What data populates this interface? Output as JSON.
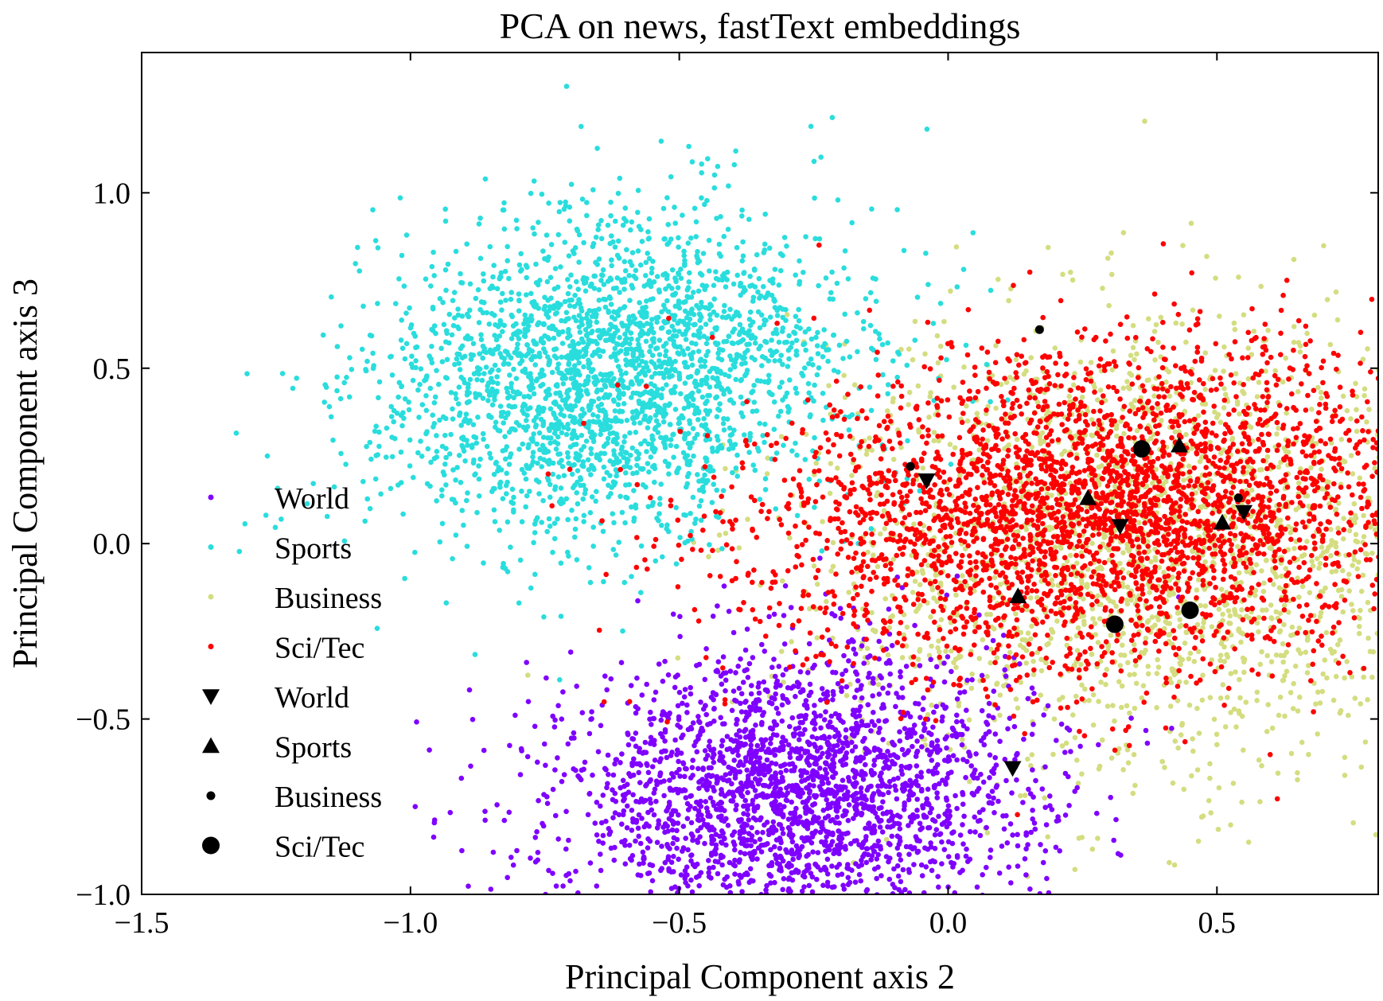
{
  "chart_data": {
    "type": "scatter",
    "title": "PCA on news, fastText embeddings",
    "xlabel": "Principal Component axis 2",
    "ylabel": "Principal Component axis 3",
    "xlim": [
      -1.5,
      0.8
    ],
    "ylim": [
      -1.0,
      1.4
    ],
    "xticks": [
      -1.5,
      -1.0,
      -0.5,
      0.0,
      0.5
    ],
    "xtick_labels": [
      "−1.5",
      "−1.0",
      "−0.5",
      "0.0",
      "0.5"
    ],
    "yticks": [
      -1.0,
      -0.5,
      0.0,
      0.5,
      1.0
    ],
    "ytick_labels": [
      "−1.0",
      "−0.5",
      "0.0",
      "0.5",
      "1.0"
    ],
    "grid": false,
    "legend_position": "left-center",
    "legend": [
      {
        "label": "World",
        "marker": "small-dot",
        "color": "#7f00ff"
      },
      {
        "label": "Sports",
        "marker": "small-dot",
        "color": "#2adddd"
      },
      {
        "label": "Business",
        "marker": "small-dot",
        "color": "#d4dd80"
      },
      {
        "label": "Sci/Tec",
        "marker": "small-dot",
        "color": "#ff0000"
      },
      {
        "label": "World",
        "marker": "triangle-down",
        "color": "#000000"
      },
      {
        "label": "Sports",
        "marker": "triangle-up",
        "color": "#000000"
      },
      {
        "label": "Business",
        "marker": "dot",
        "color": "#000000"
      },
      {
        "label": "Sci/Tec",
        "marker": "circle",
        "color": "#000000"
      }
    ],
    "clusters": [
      {
        "name": "Business",
        "color": "#d4dd80",
        "center": [
          0.38,
          0.0
        ],
        "spread": [
          0.3,
          0.32
        ],
        "rotation_deg": 25,
        "count": 2200
      },
      {
        "name": "World",
        "color": "#7f00ff",
        "center": [
          -0.28,
          -0.72
        ],
        "spread": [
          0.22,
          0.2
        ],
        "rotation_deg": 10,
        "count": 2600
      },
      {
        "name": "Sports",
        "color": "#2adddd",
        "center": [
          -0.62,
          0.48
        ],
        "spread": [
          0.2,
          0.24
        ],
        "rotation_deg": -45,
        "count": 2600
      },
      {
        "name": "Sci/Tec",
        "color": "#ff0000",
        "center": [
          0.3,
          0.1
        ],
        "spread": [
          0.32,
          0.22
        ],
        "rotation_deg": 12,
        "count": 3400
      }
    ],
    "series": [
      {
        "name": "World",
        "marker": "triangle-down",
        "color": "#000000",
        "x": [
          -0.04,
          0.32,
          0.55,
          0.12
        ],
        "y": [
          0.18,
          0.05,
          0.09,
          -0.64
        ]
      },
      {
        "name": "Sports",
        "marker": "triangle-up",
        "color": "#000000",
        "x": [
          0.43,
          0.26,
          0.51,
          0.13
        ],
        "y": [
          0.28,
          0.13,
          0.06,
          -0.15
        ]
      },
      {
        "name": "Business",
        "marker": "dot",
        "color": "#000000",
        "x": [
          0.17,
          -0.07,
          0.54
        ],
        "y": [
          0.61,
          0.22,
          0.13
        ]
      },
      {
        "name": "Sci/Tec",
        "marker": "circle",
        "color": "#000000",
        "x": [
          0.36,
          0.31,
          0.45
        ],
        "y": [
          0.27,
          -0.23,
          -0.19
        ]
      }
    ]
  }
}
